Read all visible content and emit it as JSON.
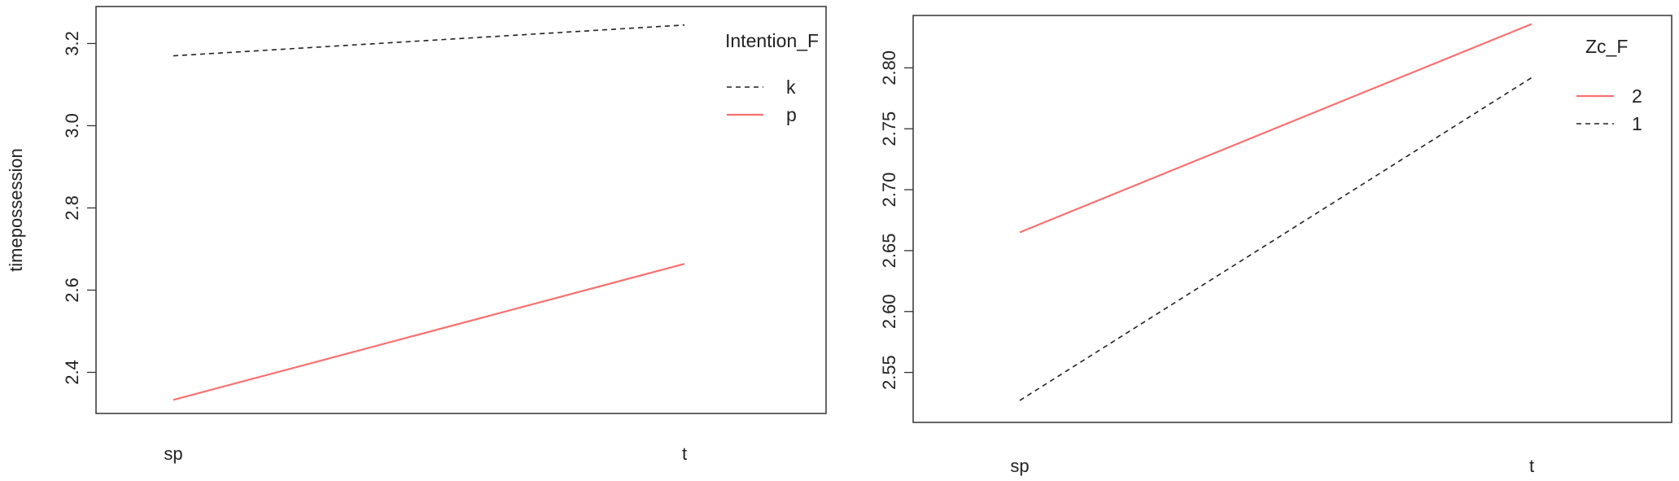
{
  "chart_data": [
    {
      "type": "line",
      "title": "",
      "xlabel": "",
      "ylabel": "timepossession",
      "categories": [
        "sp",
        "t"
      ],
      "ylim": [
        2.3,
        3.29
      ],
      "yticks": [
        2.4,
        2.6,
        2.8,
        3.0,
        3.2
      ],
      "ytick_labels": [
        "2.4",
        "2.6",
        "2.8",
        "3.0",
        "3.2"
      ],
      "grid": false,
      "legend": {
        "title": "Intention_F",
        "placement": "top-right",
        "order": [
          "k",
          "p"
        ]
      },
      "series": [
        {
          "name": "k",
          "values": [
            3.17,
            3.245
          ],
          "color": "#222222",
          "style": "dashed"
        },
        {
          "name": "p",
          "values": [
            2.333,
            2.664
          ],
          "color": "#f87171",
          "style": "solid"
        }
      ]
    },
    {
      "type": "line",
      "title": "",
      "xlabel": "",
      "ylabel": "",
      "categories": [
        "sp",
        "t"
      ],
      "ylim": [
        2.509,
        2.843
      ],
      "yticks": [
        2.55,
        2.6,
        2.65,
        2.7,
        2.75,
        2.8
      ],
      "ytick_labels": [
        "2.55",
        "2.60",
        "2.65",
        "2.70",
        "2.75",
        "2.80"
      ],
      "grid": false,
      "legend": {
        "title": "Zc_F",
        "placement": "top-right",
        "order": [
          "2",
          "1"
        ]
      },
      "series": [
        {
          "name": "2",
          "values": [
            2.665,
            2.836
          ],
          "color": "#f87171",
          "style": "solid"
        },
        {
          "name": "1",
          "values": [
            2.527,
            2.792
          ],
          "color": "#222222",
          "style": "dashed"
        }
      ]
    }
  ]
}
